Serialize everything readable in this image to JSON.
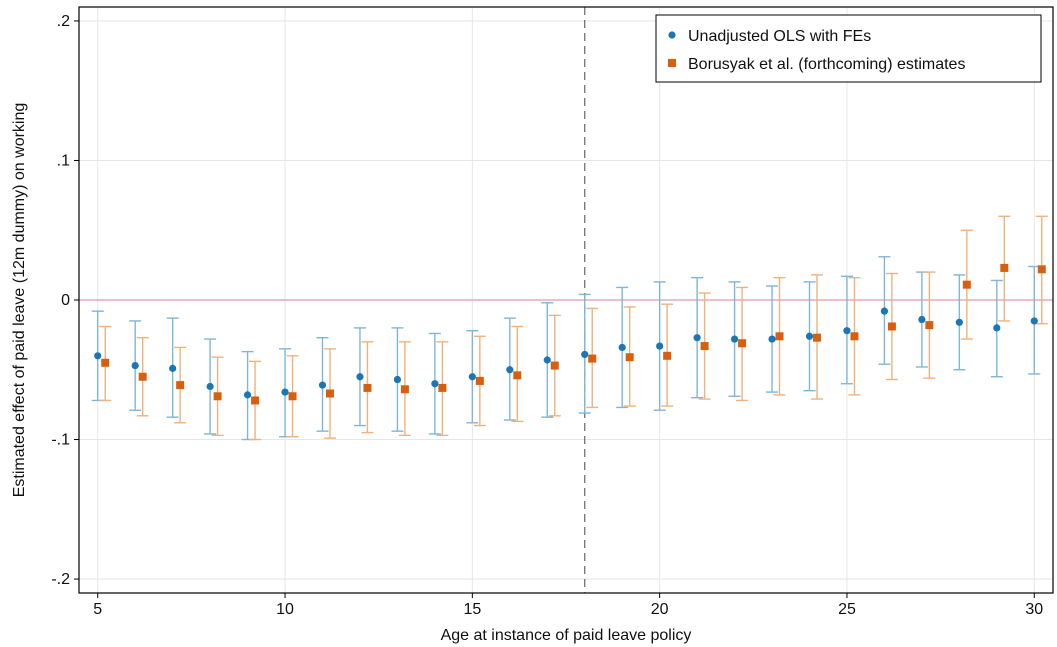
{
  "chart_data": {
    "type": "scatter",
    "title": "",
    "xlabel": "Age at instance of paid leave policy",
    "ylabel": "Estimated effect of paid leave (12m dummy) on working",
    "xlim": [
      4.5,
      30.5
    ],
    "ylim": [
      -0.21,
      0.21
    ],
    "x_ticks": [
      5,
      10,
      15,
      20,
      25,
      30
    ],
    "x_tick_labels": [
      "5",
      "10",
      "15",
      "20",
      "25",
      "30"
    ],
    "y_ticks": [
      -0.2,
      -0.1,
      0,
      0.1,
      0.2
    ],
    "y_tick_labels": [
      "-.2",
      "-.1",
      "0",
      ".1",
      ".2"
    ],
    "grid": true,
    "legend_position": "top-right",
    "reference_lines": {
      "horizontal_y": 0,
      "vertical_x": 18
    },
    "colors": {
      "ols": "#1a76b5",
      "ols_ci": "#7fb6d8",
      "borusyak": "#d85f10",
      "borusyak_ci": "#f0b27c",
      "zero_line": "#d99ab0",
      "vertical_line": "#666666",
      "grid": "#e6e6e6"
    },
    "series": [
      {
        "name": "Unadjusted OLS with FEs",
        "marker": "circle",
        "x_offset": 0,
        "x": [
          5,
          6,
          7,
          8,
          9,
          10,
          11,
          12,
          13,
          14,
          15,
          16,
          17,
          18,
          19,
          20,
          21,
          22,
          23,
          24,
          25,
          26,
          27,
          28,
          29,
          30
        ],
        "values": [
          -0.04,
          -0.047,
          -0.049,
          -0.062,
          -0.068,
          -0.066,
          -0.061,
          -0.055,
          -0.057,
          -0.06,
          -0.055,
          -0.05,
          -0.043,
          -0.039,
          -0.034,
          -0.033,
          -0.027,
          -0.028,
          -0.028,
          -0.026,
          -0.022,
          -0.008,
          -0.014,
          -0.016,
          -0.02,
          -0.015
        ],
        "ci_low": [
          -0.072,
          -0.079,
          -0.084,
          -0.096,
          -0.1,
          -0.098,
          -0.094,
          -0.09,
          -0.094,
          -0.096,
          -0.088,
          -0.086,
          -0.084,
          -0.081,
          -0.077,
          -0.079,
          -0.07,
          -0.069,
          -0.066,
          -0.065,
          -0.06,
          -0.046,
          -0.048,
          -0.05,
          -0.055,
          -0.053
        ],
        "ci_high": [
          -0.008,
          -0.015,
          -0.013,
          -0.028,
          -0.037,
          -0.035,
          -0.027,
          -0.02,
          -0.02,
          -0.024,
          -0.022,
          -0.013,
          -0.002,
          0.004,
          0.009,
          0.013,
          0.016,
          0.013,
          0.01,
          0.013,
          0.017,
          0.031,
          0.02,
          0.018,
          0.014,
          0.024
        ]
      },
      {
        "name": "Borusyak et al. (forthcoming) estimates",
        "marker": "square",
        "x_offset": 0.2,
        "x": [
          5,
          6,
          7,
          8,
          9,
          10,
          11,
          12,
          13,
          14,
          15,
          16,
          17,
          18,
          19,
          20,
          21,
          22,
          23,
          24,
          25,
          26,
          27,
          28,
          29,
          30
        ],
        "values": [
          -0.045,
          -0.055,
          -0.061,
          -0.069,
          -0.072,
          -0.069,
          -0.067,
          -0.063,
          -0.064,
          -0.063,
          -0.058,
          -0.054,
          -0.047,
          -0.042,
          -0.041,
          -0.04,
          -0.033,
          -0.031,
          -0.026,
          -0.027,
          -0.026,
          -0.019,
          -0.018,
          0.011,
          0.023,
          0.022
        ],
        "ci_low": [
          -0.072,
          -0.083,
          -0.088,
          -0.097,
          -0.1,
          -0.098,
          -0.099,
          -0.095,
          -0.097,
          -0.097,
          -0.09,
          -0.087,
          -0.083,
          -0.077,
          -0.076,
          -0.076,
          -0.071,
          -0.072,
          -0.068,
          -0.071,
          -0.068,
          -0.057,
          -0.056,
          -0.028,
          -0.015,
          -0.017
        ],
        "ci_high": [
          -0.019,
          -0.027,
          -0.034,
          -0.041,
          -0.044,
          -0.04,
          -0.035,
          -0.03,
          -0.03,
          -0.03,
          -0.026,
          -0.019,
          -0.011,
          -0.006,
          -0.005,
          -0.003,
          0.005,
          0.009,
          0.016,
          0.018,
          0.016,
          0.019,
          0.02,
          0.05,
          0.06,
          0.06
        ]
      }
    ]
  }
}
